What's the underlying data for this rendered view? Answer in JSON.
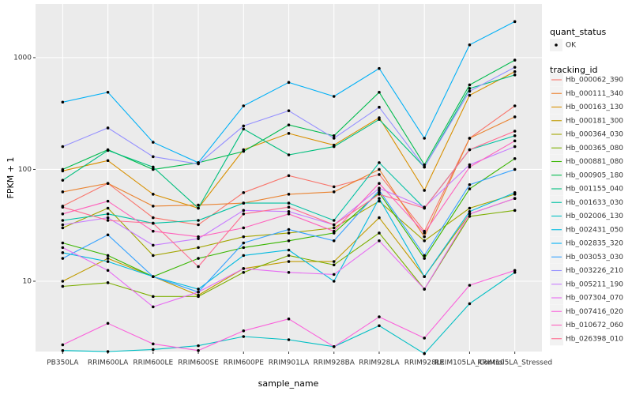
{
  "chart_data": {
    "type": "line",
    "x_label": "sample_name",
    "y_label": "FPKM + 1",
    "log_y": true,
    "grid": true,
    "categories": [
      "PB350LA",
      "RRIM600LA",
      "RRIM600LE",
      "RRIM600SE",
      "RRIM600PE",
      "RRIM901LA",
      "RRIM928BA",
      "RRIM928LA",
      "RRIM928LE",
      "RRIM105LA_Control",
      "RRIM105LA_Stressed"
    ],
    "ylim": [
      2.35,
      3020
    ],
    "yticks": [
      10,
      100,
      1000
    ],
    "point_legend": {
      "title": "quant_status",
      "labels": [
        "OK"
      ]
    },
    "legend_title": "tracking_id",
    "series": [
      {
        "name": "Hb_000062_390",
        "color": "#F8766D",
        "values": [
          47,
          75,
          37,
          32,
          62,
          88,
          70,
          90,
          28,
          190,
          370
        ]
      },
      {
        "name": "Hb_000111_340",
        "color": "#EA8331",
        "values": [
          63,
          75,
          47,
          48,
          50,
          60,
          63,
          100,
          25,
          190,
          295
        ]
      },
      {
        "name": "Hb_000163_130",
        "color": "#D89000",
        "values": [
          97,
          120,
          60,
          45,
          150,
          210,
          165,
          290,
          65,
          460,
          750
        ]
      },
      {
        "name": "Hb_000181_300",
        "color": "#C09B00",
        "values": [
          10,
          16,
          11,
          7.5,
          13,
          15,
          15,
          37,
          11,
          40,
          55
        ]
      },
      {
        "name": "Hb_000364_030",
        "color": "#A3A500",
        "values": [
          30,
          45,
          17,
          20,
          25,
          27,
          30,
          52,
          23,
          45,
          60
        ]
      },
      {
        "name": "Hb_000365_080",
        "color": "#7CAE00",
        "values": [
          9,
          9.7,
          7.3,
          7.3,
          12,
          17,
          14,
          27,
          8.5,
          38,
          43
        ]
      },
      {
        "name": "Hb_000881_080",
        "color": "#39B600",
        "values": [
          22,
          17,
          11,
          16,
          20,
          23,
          27,
          62,
          16,
          67,
          125
        ]
      },
      {
        "name": "Hb_000905_180",
        "color": "#00BB4E",
        "values": [
          100,
          150,
          100,
          115,
          145,
          250,
          200,
          490,
          110,
          570,
          950
        ]
      },
      {
        "name": "Hb_001155_040",
        "color": "#00BF7D",
        "values": [
          80,
          148,
          105,
          45,
          230,
          135,
          160,
          280,
          105,
          530,
          700
        ]
      },
      {
        "name": "Hb_001633_030",
        "color": "#00C1A3",
        "values": [
          35,
          40,
          33,
          35,
          50,
          50,
          35,
          115,
          45,
          150,
          200
        ]
      },
      {
        "name": "Hb_002006_130",
        "color": "#00BFC4",
        "values": [
          2.4,
          2.35,
          2.45,
          2.65,
          3.2,
          3.0,
          2.6,
          4.0,
          2.25,
          6.3,
          12
        ]
      },
      {
        "name": "Hb_002431_050",
        "color": "#00BAE0",
        "values": [
          18,
          15,
          11,
          8.5,
          17,
          19,
          10,
          55,
          11,
          42,
          62
        ]
      },
      {
        "name": "Hb_002835_320",
        "color": "#00B0F6",
        "values": [
          400,
          490,
          175,
          115,
          370,
          600,
          450,
          800,
          190,
          1300,
          2100
        ]
      },
      {
        "name": "Hb_003053_030",
        "color": "#35A2FF",
        "values": [
          16,
          26,
          11,
          8,
          22,
          29,
          23,
          65,
          17,
          73,
          100
        ]
      },
      {
        "name": "Hb_003226_210",
        "color": "#9590FF",
        "values": [
          160,
          235,
          130,
          112,
          245,
          335,
          190,
          360,
          105,
          500,
          820
        ]
      },
      {
        "name": "Hb_005211_190",
        "color": "#C77CFF",
        "values": [
          32,
          37,
          21,
          24,
          43,
          42,
          32,
          68,
          46,
          110,
          160
        ]
      },
      {
        "name": "Hb_007304_070",
        "color": "#E76BF3",
        "values": [
          20,
          12.5,
          5.9,
          8,
          13,
          12,
          11.5,
          23,
          8.5,
          40,
          55
        ]
      },
      {
        "name": "Hb_007416_020",
        "color": "#FA62DB",
        "values": [
          2.7,
          4.2,
          2.75,
          2.4,
          3.6,
          4.6,
          2.6,
          4.8,
          3.1,
          9.2,
          12.5
        ]
      },
      {
        "name": "Hb_010672_060",
        "color": "#FF62BC",
        "values": [
          40,
          52,
          28,
          25,
          30,
          40,
          28,
          75,
          27,
          105,
          180
        ]
      },
      {
        "name": "Hb_026398_010",
        "color": "#FF6C91",
        "values": [
          46,
          35,
          33,
          13.5,
          40,
          46,
          32,
          60,
          45,
          150,
          220
        ]
      }
    ]
  }
}
